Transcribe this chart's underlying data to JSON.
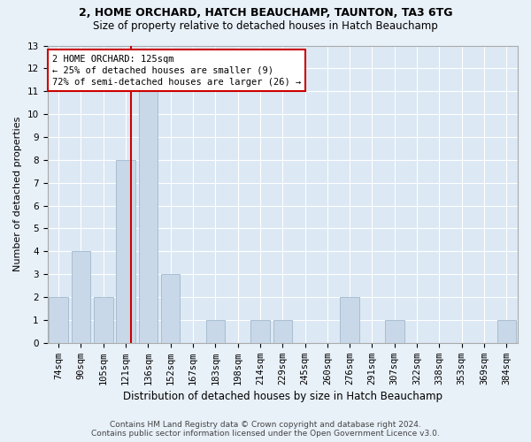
{
  "title1": "2, HOME ORCHARD, HATCH BEAUCHAMP, TAUNTON, TA3 6TG",
  "title2": "Size of property relative to detached houses in Hatch Beauchamp",
  "xlabel": "Distribution of detached houses by size in Hatch Beauchamp",
  "ylabel": "Number of detached properties",
  "categories": [
    "74sqm",
    "90sqm",
    "105sqm",
    "121sqm",
    "136sqm",
    "152sqm",
    "167sqm",
    "183sqm",
    "198sqm",
    "214sqm",
    "229sqm",
    "245sqm",
    "260sqm",
    "276sqm",
    "291sqm",
    "307sqm",
    "322sqm",
    "338sqm",
    "353sqm",
    "369sqm",
    "384sqm"
  ],
  "values": [
    2,
    4,
    2,
    8,
    11,
    3,
    0,
    1,
    0,
    1,
    1,
    0,
    0,
    2,
    0,
    1,
    0,
    0,
    0,
    0,
    1
  ],
  "bar_color": "#c8d8e8",
  "bar_edgecolor": "#a0b8cc",
  "vline_x": 3.25,
  "vline_color": "#cc0000",
  "ylim": [
    0,
    13
  ],
  "yticks": [
    0,
    1,
    2,
    3,
    4,
    5,
    6,
    7,
    8,
    9,
    10,
    11,
    12,
    13
  ],
  "annotation_text": "2 HOME ORCHARD: 125sqm\n← 25% of detached houses are smaller (9)\n72% of semi-detached houses are larger (26) →",
  "annotation_box_color": "#ffffff",
  "annotation_box_edgecolor": "#cc0000",
  "footer1": "Contains HM Land Registry data © Crown copyright and database right 2024.",
  "footer2": "Contains public sector information licensed under the Open Government Licence v3.0.",
  "bg_color": "#e8f0f8",
  "plot_bg_color": "#dce8f4",
  "grid_color": "#ffffff",
  "title1_fontsize": 9,
  "title2_fontsize": 8.5,
  "xlabel_fontsize": 8.5,
  "ylabel_fontsize": 8,
  "tick_fontsize": 7.5,
  "ann_fontsize": 7.5,
  "footer_fontsize": 6.5
}
